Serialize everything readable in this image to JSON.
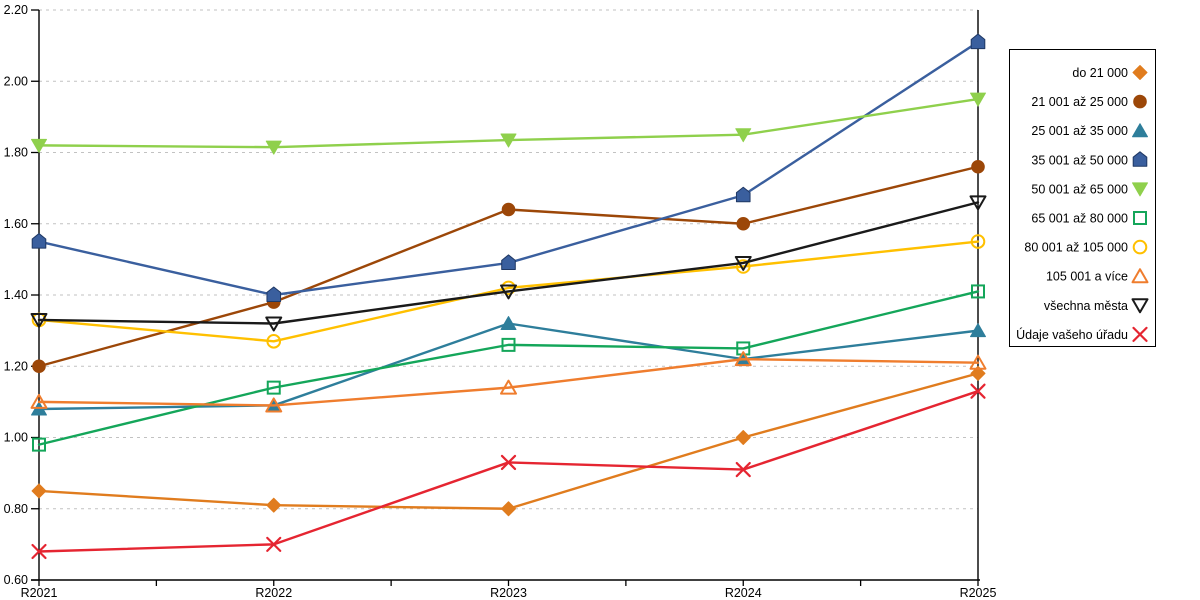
{
  "chart_data": {
    "type": "line",
    "title": "",
    "xlabel": "",
    "ylabel": "",
    "categories": [
      "R2021",
      "R2022",
      "R2023",
      "R2024",
      "R2025"
    ],
    "yticks": [
      "0.60",
      "0.80",
      "1.00",
      "1.20",
      "1.40",
      "1.60",
      "1.80",
      "2.00",
      "2.20"
    ],
    "ylim": [
      0.6,
      2.2
    ],
    "ytick_step": 0.2,
    "grid": "horizontal-dashed",
    "grid_color": "#c2c2c2",
    "axis_color": "#000000",
    "legend_position": "right",
    "series": [
      {
        "name": "do 21 000",
        "marker": "diamond",
        "style": "filled",
        "color": "#e07c1e",
        "values": [
          0.85,
          0.81,
          0.8,
          1.0,
          1.18
        ]
      },
      {
        "name": "21 001 až 25 000",
        "marker": "circle",
        "style": "filled",
        "color": "#9c4708",
        "values": [
          1.2,
          1.38,
          1.64,
          1.6,
          1.76
        ]
      },
      {
        "name": "25 001 až 35 000",
        "marker": "triangle-up",
        "style": "filled",
        "color": "#2e7e9b",
        "values": [
          1.08,
          1.09,
          1.32,
          1.22,
          1.3
        ]
      },
      {
        "name": "35 001 až 50 000",
        "marker": "pentagon",
        "style": "filled",
        "color": "#3a5f9e",
        "values": [
          1.55,
          1.4,
          1.49,
          1.68,
          2.11
        ]
      },
      {
        "name": "50 001 až 65 000",
        "marker": "triangle-down",
        "style": "filled",
        "color": "#8fd04c",
        "values": [
          1.82,
          1.815,
          1.835,
          1.85,
          1.95
        ]
      },
      {
        "name": "65 001 až 80 000",
        "marker": "square",
        "style": "open",
        "color": "#14a65a",
        "values": [
          0.98,
          1.14,
          1.26,
          1.25,
          1.41
        ]
      },
      {
        "name": "80 001 až 105 000",
        "marker": "circle",
        "style": "open",
        "color": "#ffc000",
        "values": [
          1.33,
          1.27,
          1.42,
          1.48,
          1.55
        ]
      },
      {
        "name": "105 001 a více",
        "marker": "triangle-up",
        "style": "open",
        "color": "#ef7d2e",
        "values": [
          1.1,
          1.09,
          1.14,
          1.22,
          1.21
        ]
      },
      {
        "name": "všechna města",
        "marker": "triangle-down",
        "style": "open",
        "color": "#1a1a1a",
        "values": [
          1.33,
          1.32,
          1.41,
          1.49,
          1.66
        ]
      },
      {
        "name": "Údaje vašeho úřadu",
        "marker": "x",
        "style": "open",
        "color": "#e52531",
        "values": [
          0.68,
          0.7,
          0.93,
          0.91,
          1.13
        ]
      }
    ]
  }
}
